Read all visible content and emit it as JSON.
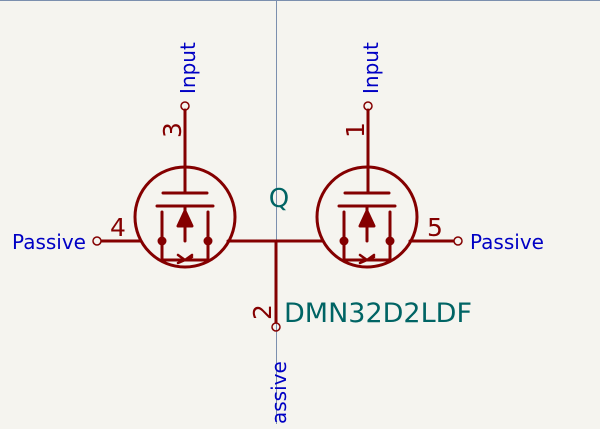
{
  "colors": {
    "background": "#f5f4ef",
    "symbol": "#840000",
    "pin_label": "#0000c4",
    "reference": "#006464",
    "crosshair": "#7b8fae"
  },
  "component": {
    "reference": "Q",
    "value": "DMN32D2LDF"
  },
  "pins": [
    {
      "number": "3",
      "name": "Input"
    },
    {
      "number": "1",
      "name": "Input"
    },
    {
      "number": "4",
      "name": "Passive"
    },
    {
      "number": "5",
      "name": "Passive"
    },
    {
      "number": "2",
      "name": "assive"
    }
  ],
  "left_edge_label": "assive"
}
